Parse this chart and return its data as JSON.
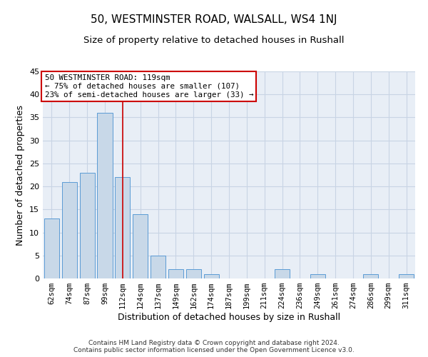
{
  "title": "50, WESTMINSTER ROAD, WALSALL, WS4 1NJ",
  "subtitle": "Size of property relative to detached houses in Rushall",
  "xlabel": "Distribution of detached houses by size in Rushall",
  "ylabel": "Number of detached properties",
  "categories": [
    "62sqm",
    "74sqm",
    "87sqm",
    "99sqm",
    "112sqm",
    "124sqm",
    "137sqm",
    "149sqm",
    "162sqm",
    "174sqm",
    "187sqm",
    "199sqm",
    "211sqm",
    "224sqm",
    "236sqm",
    "249sqm",
    "261sqm",
    "274sqm",
    "286sqm",
    "299sqm",
    "311sqm"
  ],
  "values": [
    13,
    21,
    23,
    36,
    22,
    14,
    5,
    2,
    2,
    1,
    0,
    0,
    0,
    2,
    0,
    1,
    0,
    0,
    1,
    0,
    1
  ],
  "bar_color": "#c8d8e8",
  "bar_edge_color": "#5b9bd5",
  "vline_x_index": 4,
  "vline_color": "#cc0000",
  "annotation_text": "50 WESTMINSTER ROAD: 119sqm\n← 75% of detached houses are smaller (107)\n23% of semi-detached houses are larger (33) →",
  "annotation_box_color": "#cc0000",
  "ylim": [
    0,
    45
  ],
  "yticks": [
    0,
    5,
    10,
    15,
    20,
    25,
    30,
    35,
    40,
    45
  ],
  "grid_color": "#c8d4e4",
  "bg_color": "#e8eef6",
  "title_fontsize": 11,
  "subtitle_fontsize": 9.5,
  "tick_fontsize": 7.5,
  "ylabel_fontsize": 9,
  "xlabel_fontsize": 9,
  "footer": "Contains HM Land Registry data © Crown copyright and database right 2024.\nContains public sector information licensed under the Open Government Licence v3.0."
}
